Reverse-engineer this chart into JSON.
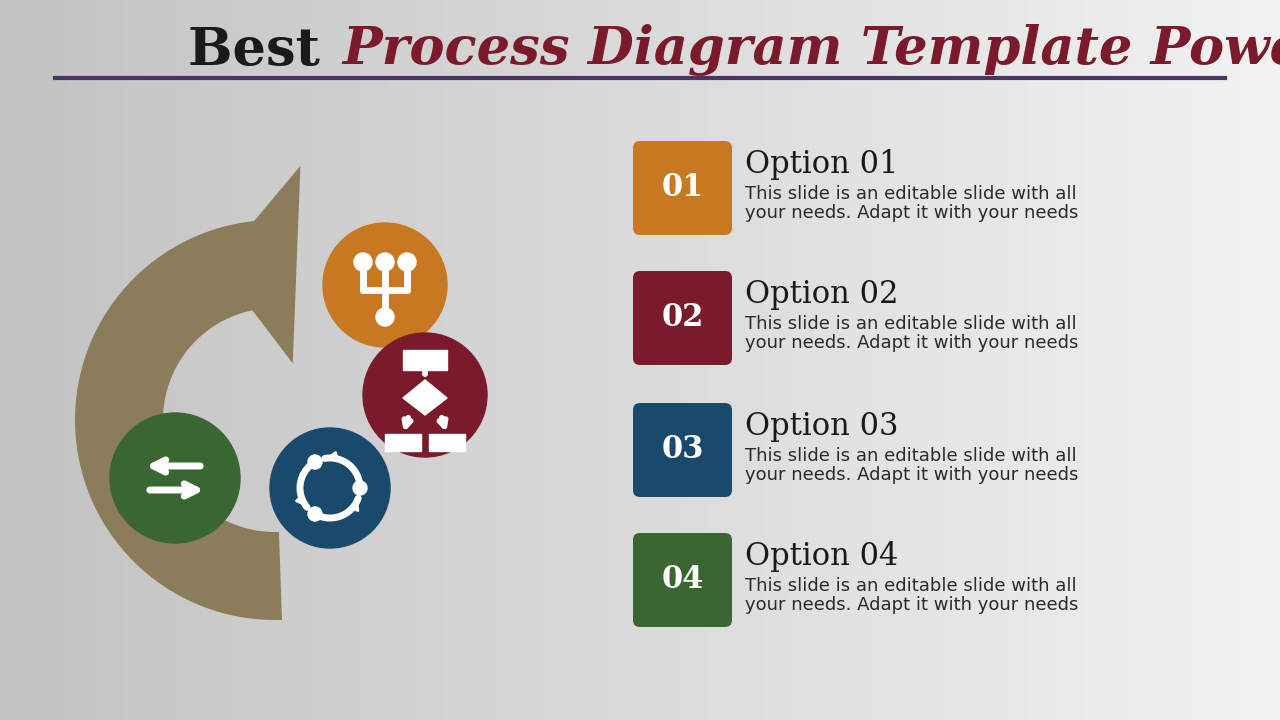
{
  "title_part1": "Best ",
  "title_part2": "Process Diagram Template PowerPoint",
  "title_color1": "#1a1a1a",
  "title_color2": "#7b1a2a",
  "title_fontsize": 38,
  "underline_color": "#4a3560",
  "arrow_color": "#8b7d5a",
  "circle_colors": [
    "#c87820",
    "#7b1a2a",
    "#1a4a6b",
    "#3a6632"
  ],
  "option_colors": [
    "#c87820",
    "#7b1a2a",
    "#1a4a6b",
    "#3a6632"
  ],
  "option_numbers": [
    "01",
    "02",
    "03",
    "04"
  ],
  "option_titles": [
    "Option 01",
    "Option 02",
    "Option 03",
    "Option 04"
  ],
  "option_desc_line1": "This slide is an editable slide with all",
  "option_desc_line2": "your needs. Adapt it with your needs",
  "option_title_fontsize": 22,
  "option_desc_fontsize": 13,
  "option_num_fontsize": 20
}
